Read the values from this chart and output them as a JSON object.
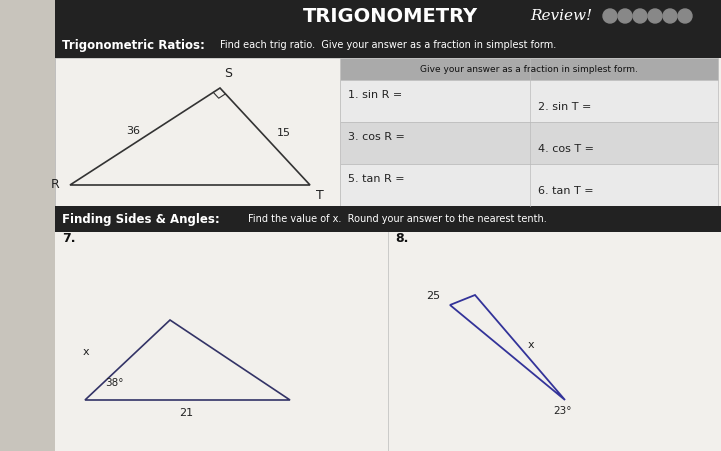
{
  "bg_color": "#c8c4bc",
  "paper_color": "#f2f0ec",
  "title_main": "TRIGONOMETRY",
  "title_cursive": "Review!",
  "section1_label": "Trigonometric Ratios:",
  "section1_sub": "Find each trig ratio.  Give your answer as a fraction in simplest form.",
  "table_header_text": "Give your answer as a fraction in simplest form.",
  "section2_label": "Finding Sides & Angles:",
  "section2_sub": "Find the value of x.  Round your answer to the nearest tenth.",
  "header_bg": "#222222",
  "row_light": "#eaeaea",
  "row_dark": "#d8d8d8",
  "table_header_bg": "#333333",
  "table_header_color": "#ffffff",
  "border_color": "#bbbbbb"
}
